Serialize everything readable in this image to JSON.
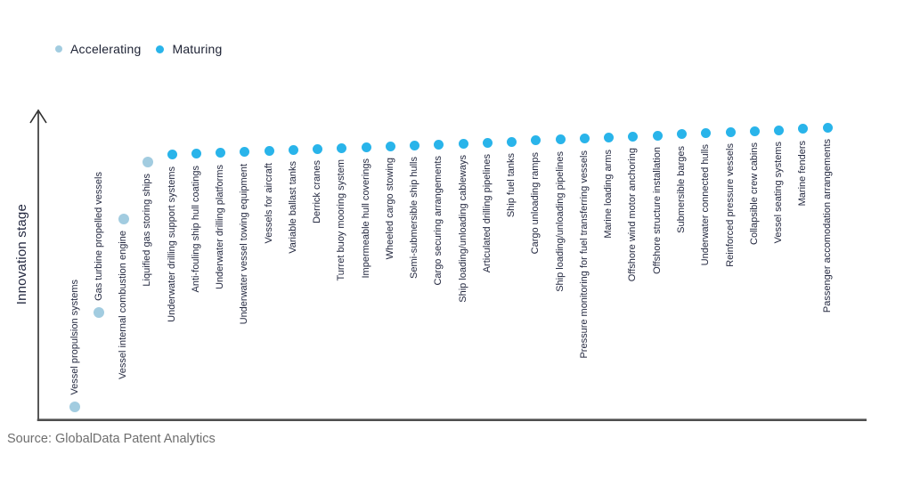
{
  "legend": {
    "items": [
      {
        "label": "Accelerating",
        "color": "#a2cce0",
        "dot_size": 8
      },
      {
        "label": "Maturing",
        "color": "#29b4ea",
        "dot_size": 9
      }
    ]
  },
  "y_axis_title": "Innovation stage",
  "source": "Source: GlobalData Patent Analytics",
  "colors": {
    "accelerating": "#a2cce0",
    "maturing": "#29b4ea",
    "label_text": "#242940",
    "axis_vertical": "#2e2e2e",
    "axis_horizontal": "#4f4f4f",
    "source_text": "#6e6e6e",
    "background": "#ffffff"
  },
  "chart_data": {
    "type": "scatter",
    "title": "",
    "xlabel": "",
    "ylabel": "Innovation stage",
    "grid": false,
    "legend_position": "top-left",
    "legend": [
      "Accelerating",
      "Maturing"
    ],
    "x_axis": {
      "tick_labels_rotated_90": true,
      "numeric_ticks_visible": false
    },
    "y_axis": {
      "range": [
        0,
        100
      ],
      "numeric_ticks_visible": false,
      "meaning": "relative innovation stage, higher = more mature"
    },
    "series": [
      {
        "name": "Accelerating",
        "color": "#a2cce0",
        "dot_size": 12,
        "points": [
          {
            "label": "Vessel propulsion systems",
            "value": 4.3
          },
          {
            "label": "Gas turbine propelled vessels",
            "value": 34.9
          },
          {
            "label": "Vessel internal combustion engine",
            "value": 65.1
          },
          {
            "label": "Liquified gas storing ships",
            "value": 83.6
          }
        ]
      },
      {
        "name": "Maturing",
        "color": "#29b4ea",
        "dot_size": 11,
        "points": [
          {
            "label": "Underwater drilling support systems",
            "value": 85.9
          },
          {
            "label": "Anti-fouling ship hull coatings",
            "value": 86.2
          },
          {
            "label": "Underwater drilling platforms",
            "value": 86.5
          },
          {
            "label": "Underwater vessel towing equipment",
            "value": 86.8
          },
          {
            "label": "Vessels for aircraft",
            "value": 87.1
          },
          {
            "label": "Variable ballast tanks",
            "value": 87.5
          },
          {
            "label": "Derrick cranes",
            "value": 87.8
          },
          {
            "label": "Turret buoy mooring system",
            "value": 88.1
          },
          {
            "label": "Impermeable hull coverings",
            "value": 88.4
          },
          {
            "label": "Wheeled cargo stowing",
            "value": 88.7
          },
          {
            "label": "Semi-submersible ship hulls",
            "value": 89.0
          },
          {
            "label": "Cargo securing arrangements",
            "value": 89.3
          },
          {
            "label": "Ship loading/unloading cableways",
            "value": 89.6
          },
          {
            "label": "Articulated drilling pipelines",
            "value": 89.9
          },
          {
            "label": "Ship fuel tanks",
            "value": 90.2
          },
          {
            "label": "Cargo unloading ramps",
            "value": 90.5
          },
          {
            "label": "Ship loading/unloading pipelines",
            "value": 90.8
          },
          {
            "label": "Pressure monitoring for fuel transferring vessels",
            "value": 91.1
          },
          {
            "label": "Marine loading arms",
            "value": 91.4
          },
          {
            "label": "Offshore wind motor anchoring",
            "value": 91.8
          },
          {
            "label": "Offshore structure installation",
            "value": 92.2
          },
          {
            "label": "Submersible barges",
            "value": 92.6
          },
          {
            "label": "Underwater connected hulls",
            "value": 93.0
          },
          {
            "label": "Reinforced pressure vessels",
            "value": 93.3
          },
          {
            "label": "Collapsible crew cabins",
            "value": 93.6
          },
          {
            "label": "Vessel seating systems",
            "value": 93.9
          },
          {
            "label": "Marine fenders",
            "value": 94.3
          },
          {
            "label": "Passenger accomodation arrangements",
            "value": 94.8
          }
        ]
      }
    ]
  }
}
